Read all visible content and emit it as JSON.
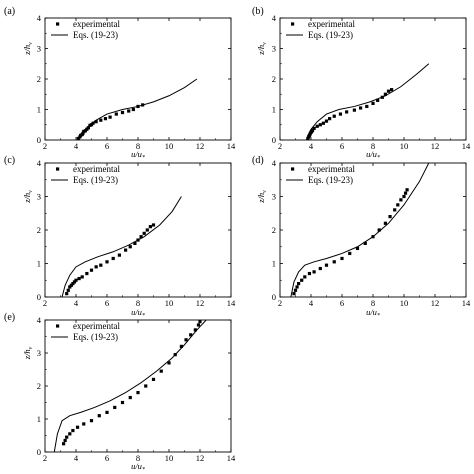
{
  "figure": {
    "xlabel": "u/u*",
    "ylabel": "z/hv",
    "legend": {
      "placement": "top-left",
      "experimental": "experimental",
      "model": "Eqs. (19-23)"
    }
  },
  "chart_data": [
    {
      "type": "scatter",
      "panel_label": "(a)",
      "xlim": [
        2,
        14
      ],
      "ylim": [
        0,
        4
      ],
      "xticks": [
        2,
        4,
        6,
        8,
        10,
        12,
        14
      ],
      "yticks": [
        0,
        1,
        2,
        3,
        4
      ],
      "xtick_labels": [
        "2",
        "4",
        "6",
        "8",
        "10",
        "12",
        "14"
      ],
      "ytick_labels": [
        "0",
        "1",
        "2",
        "3",
        "4"
      ],
      "xlabel": "u/u*",
      "ylabel": "z/hv",
      "series": [
        {
          "name": "experimental",
          "kind": "markers",
          "x": [
            4.15,
            4.25,
            4.3,
            4.4,
            4.45,
            4.5,
            4.6,
            4.7,
            4.8,
            4.9,
            5.0,
            5.1,
            5.3,
            5.6,
            5.9,
            6.2,
            6.6,
            7.0,
            7.4,
            7.7,
            8.0,
            8.3
          ],
          "y": [
            0.05,
            0.1,
            0.15,
            0.18,
            0.22,
            0.28,
            0.3,
            0.35,
            0.4,
            0.48,
            0.5,
            0.55,
            0.6,
            0.65,
            0.7,
            0.75,
            0.85,
            0.9,
            0.95,
            1.0,
            1.1,
            1.15
          ]
        },
        {
          "name": "Eqs. (19-23)",
          "kind": "line",
          "x": [
            4.1,
            4.2,
            4.4,
            4.8,
            5.3,
            6.0,
            7.0,
            8.0,
            9.0,
            10.0,
            11.0,
            11.8
          ],
          "y": [
            0.0,
            0.12,
            0.25,
            0.45,
            0.65,
            0.85,
            1.0,
            1.1,
            1.25,
            1.45,
            1.72,
            2.0
          ]
        }
      ]
    },
    {
      "type": "scatter",
      "panel_label": "(b)",
      "xlim": [
        2,
        14
      ],
      "ylim": [
        0,
        4
      ],
      "xticks": [
        2,
        4,
        6,
        8,
        10,
        12,
        14
      ],
      "yticks": [
        0,
        1,
        2,
        3,
        4
      ],
      "xtick_labels": [
        "2",
        "4",
        "6",
        "8",
        "10",
        "12",
        "14"
      ],
      "ytick_labels": [
        "0",
        "1",
        "2",
        "3",
        "4"
      ],
      "xlabel": "u/u*",
      "ylabel": "z/hv",
      "series": [
        {
          "name": "experimental",
          "kind": "markers",
          "x": [
            3.8,
            3.85,
            3.9,
            3.95,
            4.0,
            4.05,
            4.1,
            4.2,
            4.4,
            4.6,
            4.8,
            5.0,
            5.2,
            5.5,
            5.9,
            6.3,
            6.8,
            7.2,
            7.6,
            8.0,
            8.3,
            8.6,
            8.8,
            9.0,
            9.2
          ],
          "y": [
            0.05,
            0.1,
            0.15,
            0.2,
            0.25,
            0.28,
            0.32,
            0.38,
            0.45,
            0.5,
            0.55,
            0.62,
            0.7,
            0.78,
            0.85,
            0.92,
            0.98,
            1.05,
            1.1,
            1.2,
            1.3,
            1.4,
            1.5,
            1.6,
            1.65
          ]
        },
        {
          "name": "Eqs. (19-23)",
          "kind": "line",
          "x": [
            3.7,
            3.8,
            4.0,
            4.4,
            5.0,
            5.8,
            6.8,
            7.8,
            8.8,
            9.8,
            10.8,
            11.6
          ],
          "y": [
            0.0,
            0.15,
            0.35,
            0.6,
            0.85,
            1.0,
            1.1,
            1.25,
            1.45,
            1.75,
            2.15,
            2.5
          ]
        }
      ]
    },
    {
      "type": "scatter",
      "panel_label": "(c)",
      "xlim": [
        2,
        14
      ],
      "ylim": [
        0,
        4
      ],
      "xticks": [
        2,
        4,
        6,
        8,
        10,
        12,
        14
      ],
      "yticks": [
        0,
        1,
        2,
        3,
        4
      ],
      "xtick_labels": [
        "2",
        "4",
        "6",
        "8",
        "10",
        "12",
        "14"
      ],
      "ytick_labels": [
        "0",
        "1",
        "2",
        "3",
        "4"
      ],
      "xlabel": "u/u*",
      "ylabel": "z/hv",
      "series": [
        {
          "name": "experimental",
          "kind": "markers",
          "x": [
            3.4,
            3.5,
            3.6,
            3.7,
            3.8,
            3.9,
            4.0,
            4.2,
            4.4,
            4.7,
            5.0,
            5.3,
            5.6,
            6.0,
            6.4,
            6.8,
            7.2,
            7.5,
            7.8,
            8.0,
            8.2,
            8.4,
            8.6,
            8.8,
            9.0
          ],
          "y": [
            0.1,
            0.2,
            0.3,
            0.35,
            0.4,
            0.45,
            0.5,
            0.55,
            0.6,
            0.7,
            0.8,
            0.9,
            0.95,
            1.05,
            1.15,
            1.25,
            1.4,
            1.5,
            1.6,
            1.7,
            1.8,
            1.9,
            2.0,
            2.1,
            2.15
          ]
        },
        {
          "name": "Eqs. (19-23)",
          "kind": "line",
          "x": [
            3.1,
            3.3,
            3.6,
            4.0,
            4.6,
            5.4,
            6.4,
            7.4,
            8.4,
            9.4,
            10.2,
            10.8
          ],
          "y": [
            0.0,
            0.35,
            0.65,
            0.9,
            1.05,
            1.2,
            1.35,
            1.55,
            1.8,
            2.15,
            2.55,
            3.0
          ]
        }
      ]
    },
    {
      "type": "scatter",
      "panel_label": "(d)",
      "xlim": [
        2,
        14
      ],
      "ylim": [
        0,
        4
      ],
      "xticks": [
        2,
        4,
        6,
        8,
        10,
        12,
        14
      ],
      "yticks": [
        0,
        1,
        2,
        3,
        4
      ],
      "xtick_labels": [
        "2",
        "4",
        "6",
        "8",
        "10",
        "12",
        "14"
      ],
      "ytick_labels": [
        "0",
        "1",
        "2",
        "3",
        "4"
      ],
      "xlabel": "u/u*",
      "ylabel": "z/hv",
      "series": [
        {
          "name": "experimental",
          "kind": "markers",
          "x": [
            2.9,
            3.0,
            3.1,
            3.2,
            3.4,
            3.6,
            3.9,
            4.2,
            4.6,
            5.0,
            5.5,
            6.0,
            6.5,
            7.0,
            7.5,
            8.0,
            8.4,
            8.8,
            9.1,
            9.4,
            9.6,
            9.8,
            10.0,
            10.1,
            10.2
          ],
          "y": [
            0.1,
            0.2,
            0.3,
            0.4,
            0.5,
            0.6,
            0.7,
            0.75,
            0.85,
            0.95,
            1.05,
            1.15,
            1.3,
            1.45,
            1.6,
            1.8,
            2.0,
            2.2,
            2.4,
            2.6,
            2.75,
            2.9,
            3.0,
            3.1,
            3.2
          ]
        },
        {
          "name": "Eqs. (19-23)",
          "kind": "line",
          "x": [
            2.7,
            2.9,
            3.2,
            3.6,
            4.2,
            5.0,
            6.0,
            7.0,
            8.0,
            9.0,
            10.0,
            11.0,
            11.6
          ],
          "y": [
            0.0,
            0.45,
            0.75,
            0.95,
            1.05,
            1.15,
            1.3,
            1.5,
            1.8,
            2.2,
            2.75,
            3.45,
            4.0
          ]
        }
      ]
    },
    {
      "type": "scatter",
      "panel_label": "(e)",
      "xlim": [
        2,
        14
      ],
      "ylim": [
        0,
        4
      ],
      "xticks": [
        2,
        4,
        6,
        8,
        10,
        12,
        14
      ],
      "yticks": [
        0,
        1,
        2,
        3,
        4
      ],
      "xtick_labels": [
        "2",
        "4",
        "6",
        "8",
        "10",
        "12",
        "14"
      ],
      "ytick_labels": [
        "0",
        "1",
        "2",
        "3",
        "4"
      ],
      "xlabel": "u/u*",
      "ylabel": "z/hv",
      "series": [
        {
          "name": "experimental",
          "kind": "markers",
          "x": [
            3.2,
            3.3,
            3.4,
            3.6,
            3.8,
            4.1,
            4.5,
            5.0,
            5.5,
            6.0,
            6.5,
            7.0,
            7.5,
            8.0,
            8.5,
            9.0,
            9.5,
            10.0,
            10.4,
            10.8,
            11.1,
            11.4,
            11.7,
            11.9,
            12.0
          ],
          "y": [
            0.25,
            0.35,
            0.45,
            0.55,
            0.65,
            0.75,
            0.85,
            0.95,
            1.1,
            1.2,
            1.35,
            1.5,
            1.65,
            1.8,
            2.0,
            2.2,
            2.45,
            2.7,
            2.95,
            3.2,
            3.4,
            3.55,
            3.7,
            3.85,
            3.95
          ]
        },
        {
          "name": "Eqs. (19-23)",
          "kind": "line",
          "x": [
            2.6,
            2.8,
            3.1,
            3.6,
            4.3,
            5.2,
            6.2,
            7.2,
            8.2,
            9.2,
            10.2,
            11.0,
            11.8,
            12.4
          ],
          "y": [
            0.0,
            0.55,
            0.95,
            1.1,
            1.2,
            1.35,
            1.55,
            1.8,
            2.1,
            2.45,
            2.85,
            3.25,
            3.7,
            4.0
          ]
        }
      ]
    }
  ]
}
